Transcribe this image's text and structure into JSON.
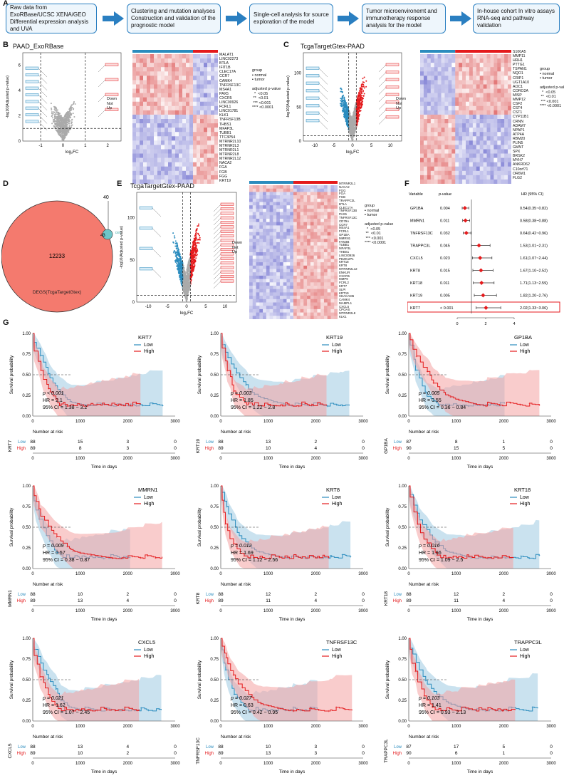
{
  "panel_letters": {
    "A": "A",
    "B": "B",
    "C": "C",
    "D": "D",
    "E": "E",
    "F": "F",
    "G": "G"
  },
  "flow": [
    "Raw data from\nExoRBase/UCSC XENA/GEO\nDifferential expression analysis\nand UVA",
    "Clustering and mutation analyses\nConstruction and validation\nof the prognostic model",
    "Single-cell analysis for\nsource exploration of the model",
    "Tumor microenvironemt\nand immunotherapy response\nanalysis for the model",
    "In-house cohort\nIn vitro assays\nRNA-seq and pathway validation"
  ],
  "panelB": {
    "title": "PAAD_ExoRBase",
    "ylabel": "-log10(Adjusted p-value)",
    "xlabel": "log2 FC",
    "legend": [
      "Down",
      "Not",
      "Up"
    ],
    "genes": [
      "MALAT1",
      "LINC02273",
      "BTLA",
      "IFIT1B",
      "CLEC17A",
      "CCR7",
      "CAMK4",
      "TNFRSF13C",
      "MS4A1",
      "PAX5",
      "CXCR5",
      "LINC00926",
      "FCRL1",
      "LINC01781",
      "KLK1",
      "TNFRSF13B",
      "THBS1",
      "MFAP3L",
      "TUBB1",
      "TTC3P54",
      "MTRNR2L10",
      "MTRNR2L3",
      "MTRNR2L1",
      "MTRNR2L8",
      "MTRNR2L12",
      "NACA2",
      "FGA",
      "FGB",
      "FGG",
      "KRT19"
    ],
    "heat_legend": "group\n▪ normal\n▪ tumor\n\nadjusted p-value\n  *  <0.05\n **  <0.01\n *** <0.001\n**** <0.0001"
  },
  "panelC": {
    "title": "TcgaTargetGtex-PAAD",
    "genes": [
      "S100A5",
      "MMP11",
      "HRH1",
      "PTTG1",
      "TSPAN1",
      "NQO1",
      "CRIP1",
      "UGT1A10",
      "AOC1",
      "CORO2A",
      "MISP",
      "MMP12",
      "CSF2",
      "CST4",
      "CST1",
      "CYP11B1",
      "CRNN",
      "ADAM7",
      "NPAP1",
      "ATP4A",
      "RBM20",
      "PLIN5",
      "GMNT",
      "SPX",
      "BRSK2",
      "MYH7",
      "ANKRD62",
      "C10orf71",
      "OR6M1",
      "FLG2"
    ]
  },
  "panelD": {
    "big_value": "12233",
    "big_label": "DEGS(TcgaTargetGtex)",
    "small_label": "DEGS\n(ExoRBase)",
    "overlap": "43",
    "top": "40"
  },
  "panelE": {
    "title": "TcgaTargetGtex-PAAD",
    "genes": [
      "MTRNR2L1",
      "NACA2",
      "FGG",
      "FGA",
      "FGB",
      "TRAPPC3L",
      "BTLA",
      "CLEC17A",
      "TNFRSF13B",
      "PAX5",
      "TNFRSF13C",
      "CD79A",
      "CCR7",
      "MS4A1",
      "FCRL1",
      "GP1BA",
      "MMRN1",
      "FAM3B",
      "TUBB1",
      "MFAP3L",
      "THBS1",
      "LINC00926",
      "PDZK1IP1",
      "KRT18",
      "KRT8",
      "MTRNR2L12",
      "ENKUR",
      "CXCR5",
      "MMP9",
      "FCRL2",
      "KRT7",
      "SLPI",
      "KRT19",
      "CEACAM6",
      "CAMK4",
      "MAMPL1",
      "CXCL5",
      "CPOAS",
      "MTRNR2L8",
      "KLK1"
    ]
  },
  "panelF": {
    "header": [
      "Variable",
      "p-value",
      "HR (95% CI)"
    ],
    "rows": [
      {
        "v": "GP1BA",
        "p": "0.004",
        "hr": "0.54(0.35~0.82)",
        "val": 0.54,
        "lo": 0.35,
        "hi": 0.82
      },
      {
        "v": "MMRN1",
        "p": "0.011",
        "hr": "0.58(0.38~0.88)",
        "val": 0.58,
        "lo": 0.38,
        "hi": 0.88
      },
      {
        "v": "TNFRSF13C",
        "p": "0.032",
        "hr": "0.64(0.42~0.96)",
        "val": 0.64,
        "lo": 0.42,
        "hi": 0.96
      },
      {
        "v": "TRAPPC3L",
        "p": "0.045",
        "hr": "1.53(1.01~2.31)",
        "val": 1.53,
        "lo": 1.01,
        "hi": 2.31
      },
      {
        "v": "CXCL5",
        "p": "0.023",
        "hr": "1.61(1.07~2.44)",
        "val": 1.61,
        "lo": 1.07,
        "hi": 2.44
      },
      {
        "v": "KRT8",
        "p": "0.015",
        "hr": "1.67(1.10~2.52)",
        "val": 1.67,
        "lo": 1.1,
        "hi": 2.52
      },
      {
        "v": "KRT18",
        "p": "0.011",
        "hr": "1.71(1.13~2.59)",
        "val": 1.71,
        "lo": 1.13,
        "hi": 2.59
      },
      {
        "v": "KRT19",
        "p": "0.005",
        "hr": "1.82(1.20~2.76)",
        "val": 1.82,
        "lo": 1.2,
        "hi": 2.76
      },
      {
        "v": "KRT7",
        "p": "< 0.001",
        "hr": "2.02(1.33~3.06)",
        "val": 2.02,
        "lo": 1.33,
        "hi": 3.06
      }
    ],
    "ticks": [
      "0",
      "2",
      "4"
    ]
  },
  "km_common": {
    "ylabel": "Survival probability",
    "xlabel": "Time in days",
    "risk_title": "Number at risk",
    "low": "Low",
    "high": "High",
    "yticks": [
      "0.00",
      "0.25",
      "0.50",
      "0.75",
      "1.00"
    ],
    "xticks": [
      "0",
      "1000",
      "2000",
      "3000"
    ]
  },
  "km": [
    {
      "gene": "KRT7",
      "p": "p < 0.001",
      "hr": "HR = 2.1",
      "ci": "95% CI = 1.38 − 3.2",
      "low": [
        "88",
        "15",
        "3",
        "0"
      ],
      "high": [
        "89",
        "8",
        "3",
        "0"
      ]
    },
    {
      "gene": "KRT19",
      "p": "p = 0.003",
      "hr": "HR = 1.85",
      "ci": "95% CI = 1.22 − 2.8",
      "low": [
        "88",
        "13",
        "2",
        "0"
      ],
      "high": [
        "89",
        "10",
        "4",
        "0"
      ]
    },
    {
      "gene": "GP1BA",
      "p": "p = 0.005",
      "hr": "HR = 0.55",
      "ci": "95% CI = 0.36 − 0.84",
      "low": [
        "87",
        "8",
        "1",
        "0"
      ],
      "high": [
        "90",
        "15",
        "5",
        "0"
      ]
    },
    {
      "gene": "MMRN1",
      "p": "p = 0.009",
      "hr": "HR = 0.57",
      "ci": "95% CI = 0.38 − 0.87",
      "low": [
        "88",
        "10",
        "2",
        "0"
      ],
      "high": [
        "89",
        "13",
        "4",
        "0"
      ]
    },
    {
      "gene": "KRT8",
      "p": "p = 0.012",
      "hr": "HR = 1.69",
      "ci": "95% CI = 1.12 − 2.56",
      "low": [
        "88",
        "12",
        "2",
        "0"
      ],
      "high": [
        "89",
        "11",
        "4",
        "0"
      ]
    },
    {
      "gene": "KRT18",
      "p": "p = 0.016",
      "hr": "HR = 1.66",
      "ci": "95% CI = 1.09 − 2.5",
      "low": [
        "88",
        "12",
        "2",
        "0"
      ],
      "high": [
        "89",
        "11",
        "4",
        "0"
      ]
    },
    {
      "gene": "CXCL5",
      "p": "p = 0.021",
      "hr": "HR = 1.62",
      "ci": "95% CI = 1.07 − 2.45",
      "low": [
        "88",
        "13",
        "4",
        "0"
      ],
      "high": [
        "89",
        "10",
        "2",
        "0"
      ]
    },
    {
      "gene": "TNFRSF13C",
      "p": "p = 0.027",
      "hr": "HR = 0.63",
      "ci": "95% CI = 0.42 − 0.95",
      "low": [
        "88",
        "10",
        "3",
        "0"
      ],
      "high": [
        "89",
        "13",
        "3",
        "0"
      ]
    },
    {
      "gene": "TRAPPC3L",
      "p": "p = 0.103",
      "hr": "HR = 1.41",
      "ci": "95% CI = 0.93 − 2.13",
      "low": [
        "87",
        "17",
        "5",
        "0"
      ],
      "high": [
        "90",
        "6",
        "1",
        "0"
      ]
    }
  ],
  "colors": {
    "low": "#2b8cbe",
    "high": "#e41a1c",
    "low_fill": "#9ecae1",
    "high_fill": "#f4a3a3",
    "flow": "#2a7fc1"
  }
}
